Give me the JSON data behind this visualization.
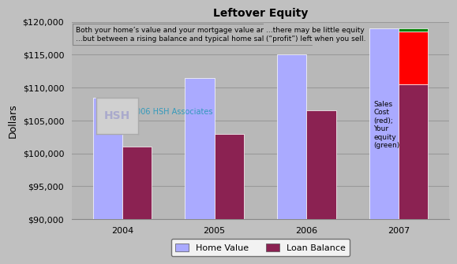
{
  "title": "Leftover Equity",
  "years": [
    "2004",
    "2005",
    "2006",
    "2007"
  ],
  "home_values": [
    108500,
    111500,
    115000,
    119000
  ],
  "loan_balances": [
    101000,
    103000,
    106500,
    110500
  ],
  "sales_cost_2007": 8000,
  "equity_2007": 500,
  "ylim": [
    90000,
    120000
  ],
  "yticks": [
    90000,
    95000,
    100000,
    105000,
    110000,
    115000,
    120000
  ],
  "bar_width": 0.32,
  "home_color": "#aaaaff",
  "loan_color": "#8b2252",
  "sales_cost_color": "#ff0000",
  "equity_color": "#008000",
  "bg_color": "#c0c0c0",
  "plot_bg_color": "#b8b8b8",
  "grid_color": "#999999",
  "annotation_text1": "Both your home’s value and your mortgage value are rising...\n...but between a rising balance and typical home sales charges...",
  "annotation_text2": "...there may be little equity\n(“profit”) left when you sell.",
  "annotation_text3": "Sales\nCost\n(red);\nYour\nequity\n(green)",
  "watermark": "© 2006 HSH Associates",
  "ylabel_text": "Dollars",
  "legend_home": "Home Value",
  "legend_loan": "Loan Balance"
}
